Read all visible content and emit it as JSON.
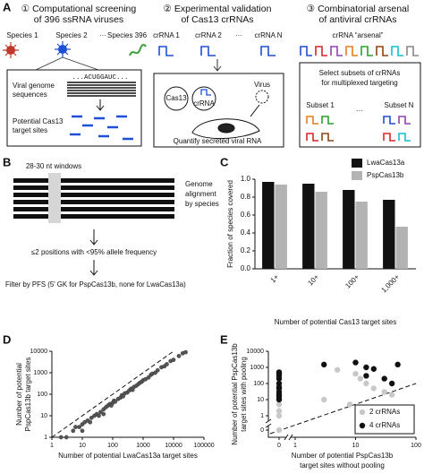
{
  "panel_a": {
    "panel": "A",
    "col1": {
      "title": [
        "① Computational screening",
        "of 396 ssRNA viruses"
      ],
      "species": [
        "Species 1",
        "Species 2",
        "···",
        "Species 396"
      ],
      "sequence": "...ACUGGAUC...",
      "genome_label": [
        "Viral genome",
        "sequences"
      ],
      "sites_label": [
        "Potential Cas13",
        "target sites"
      ]
    },
    "col2": {
      "title": [
        "② Experimental validation",
        "of Cas13 crRNAs"
      ],
      "crrnas": [
        "crRNA 1",
        "crRNA 2",
        "···",
        "crRNA N"
      ],
      "cas13": "Cas13",
      "crrna": "crRNA",
      "virus": "Virus",
      "quantify": "Quantify secreted viral RNA"
    },
    "col3": {
      "title": [
        "③ Combinatorial arsenal",
        "of antiviral crRNAs"
      ],
      "arsenal": "crRNA “arsenal”",
      "select": [
        "Select subsets of crRNAs",
        "for multiplexed targeting"
      ],
      "subsets": [
        "Subset 1",
        "···",
        "Subset N"
      ]
    }
  },
  "panel_b": {
    "panel": "B",
    "windows": "28-30 nt windows",
    "alignment": [
      "Genome",
      "alignment",
      "by species"
    ],
    "step1": "≤2 positions with <95% allele frequency",
    "step2": "Filter by PFS (5' GK for PspCas13b, none for LwaCas13a)"
  },
  "chart_data": [
    {
      "panel": "C",
      "type": "bar",
      "categories": [
        "1+",
        "10+",
        "100+",
        "1,000+"
      ],
      "series": [
        {
          "name": "LwaCas13a",
          "color": "#111111",
          "values": [
            0.97,
            0.95,
            0.88,
            0.77
          ]
        },
        {
          "name": "PspCas13b",
          "color": "#b3b3b3",
          "values": [
            0.94,
            0.86,
            0.75,
            0.47
          ]
        }
      ],
      "ylim": [
        0,
        1
      ],
      "yticks": [
        {
          "value": 0,
          "label": "0.0"
        },
        0.2,
        0.4,
        0.6,
        0.8,
        {
          "value": 1,
          "label": "1.0"
        }
      ],
      "y_label": "Fraction of species covered",
      "x_label": "Number of potential Cas13 target sites",
      "legend": "upper right"
    },
    {
      "panel": "D",
      "type": "scatter",
      "log_scale": true,
      "color": "#555555",
      "x": [
        2,
        3,
        5,
        6,
        8,
        10,
        10,
        12,
        15,
        18,
        20,
        25,
        30,
        35,
        40,
        50,
        50,
        60,
        70,
        80,
        90,
        100,
        110,
        120,
        150,
        180,
        200,
        220,
        250,
        300,
        350,
        400,
        450,
        500,
        600,
        700,
        800,
        900,
        1000,
        1200,
        1500,
        1800,
        2000,
        2500,
        3000,
        4000,
        5000,
        6000,
        8000,
        10000,
        15000,
        20000,
        25000
      ],
      "values": [
        1,
        1,
        2,
        3,
        3,
        4,
        2,
        5,
        6,
        5,
        8,
        10,
        12,
        10,
        15,
        20,
        12,
        25,
        30,
        35,
        30,
        40,
        50,
        45,
        60,
        70,
        90,
        80,
        110,
        120,
        150,
        180,
        160,
        220,
        250,
        300,
        350,
        380,
        450,
        500,
        600,
        800,
        900,
        1000,
        1300,
        1800,
        2000,
        2500,
        3500,
        4000,
        6000,
        8000,
        9000
      ],
      "xlim": [
        1,
        100000
      ],
      "ylim": [
        1,
        10000
      ],
      "xticks": [
        1,
        10,
        100,
        1000,
        10000,
        100000
      ],
      "yticks": [
        1,
        10,
        100,
        1000,
        10000
      ],
      "x_label": "Number of potential LwaCas13a target sites",
      "y_label": [
        "Number of potential",
        "PspCas13b target sites"
      ]
    },
    {
      "panel": "E",
      "type": "scatter",
      "log_scale": true,
      "axis_break": true,
      "series": [
        {
          "name": "2 crRNAs",
          "color": "#c8c8c8",
          "x": [
            0,
            0,
            0,
            0,
            0,
            0,
            0,
            5,
            10,
            12,
            15,
            20,
            3,
            30,
            40,
            8,
            15
          ],
          "values": [
            100,
            50,
            20,
            5,
            2,
            1,
            0,
            700,
            400,
            200,
            100,
            50,
            10,
            30,
            20,
            5,
            3
          ]
        },
        {
          "name": "4 crRNAs",
          "color": "#111111",
          "x": [
            0,
            0,
            0,
            0,
            0,
            0,
            0,
            0,
            0,
            0,
            0,
            3,
            10,
            15,
            20,
            15,
            30,
            40,
            50
          ],
          "values": [
            500,
            300,
            400,
            200,
            100,
            50,
            30,
            20,
            15,
            10,
            60,
            1500,
            2000,
            1000,
            800,
            300,
            200,
            100,
            1500
          ]
        }
      ],
      "xlim": [
        0,
        100
      ],
      "ylim": [
        0,
        10000
      ],
      "xticks": [
        0,
        1,
        10,
        100
      ],
      "yticks": [
        0,
        1,
        10,
        100,
        1000,
        10000
      ],
      "x_label": [
        "Number of potential PspCas13b",
        "target sites without pooling"
      ],
      "y_label": [
        "Number of potential PspCas13b",
        "target sites with pooling"
      ],
      "legend": "lower right"
    }
  ]
}
